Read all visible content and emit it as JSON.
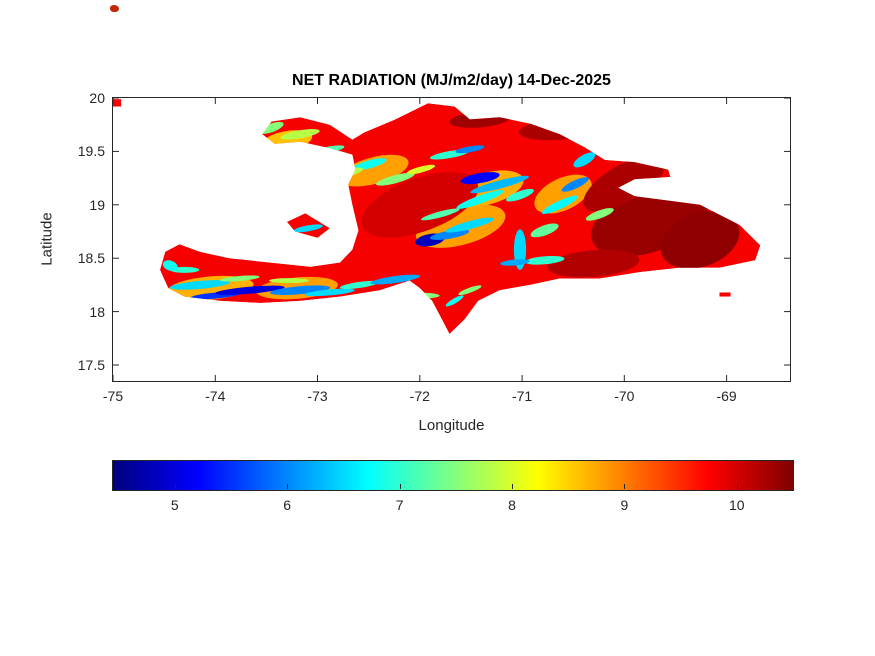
{
  "chart_data": {
    "type": "heatmap",
    "title": "NET RADIATION (MJ/m2/day) 14-Dec-2025",
    "xlabel": "Longitude",
    "ylabel": "Latitude",
    "units": "MJ/m2/day",
    "date": "14-Dec-2025",
    "region_shape": "Hispaniola",
    "xlim": [
      -75,
      -68.38
    ],
    "ylim": [
      17.35,
      20.0
    ],
    "x_ticks": [
      -75,
      -74,
      -73,
      -72,
      -71,
      -70,
      -69
    ],
    "y_ticks": [
      20,
      19.5,
      19,
      18.5,
      18,
      17.5
    ],
    "grid": false,
    "colorbar": {
      "orientation": "horizontal",
      "colormap": "jet",
      "min": 4.45,
      "max": 10.5,
      "ticks": [
        5,
        6,
        7,
        8,
        9,
        10
      ]
    },
    "base_value": 9.8,
    "outlines": [
      [
        [
          -73.54,
          19.66
        ],
        [
          -73.45,
          19.78
        ],
        [
          -73.17,
          19.82
        ],
        [
          -72.88,
          19.75
        ],
        [
          -72.66,
          19.61
        ],
        [
          -72.54,
          19.68
        ],
        [
          -72.24,
          19.8
        ],
        [
          -71.92,
          19.95
        ],
        [
          -71.66,
          19.92
        ],
        [
          -71.51,
          19.8
        ],
        [
          -71.22,
          19.82
        ],
        [
          -70.92,
          19.76
        ],
        [
          -70.63,
          19.66
        ],
        [
          -70.39,
          19.54
        ],
        [
          -70.19,
          19.42
        ],
        [
          -69.9,
          19.4
        ],
        [
          -69.57,
          19.33
        ],
        [
          -69.55,
          19.26
        ],
        [
          -69.9,
          19.24
        ],
        [
          -70.06,
          19.16
        ],
        [
          -69.9,
          19.08
        ],
        [
          -69.26,
          19.0
        ],
        [
          -68.87,
          18.81
        ],
        [
          -68.67,
          18.62
        ],
        [
          -68.72,
          18.48
        ],
        [
          -69.07,
          18.41
        ],
        [
          -69.46,
          18.41
        ],
        [
          -69.85,
          18.37
        ],
        [
          -70.24,
          18.31
        ],
        [
          -70.63,
          18.31
        ],
        [
          -70.92,
          18.25
        ],
        [
          -71.22,
          18.2
        ],
        [
          -71.43,
          18.1
        ],
        [
          -71.56,
          17.93
        ],
        [
          -71.71,
          17.79
        ],
        [
          -71.78,
          17.92
        ],
        [
          -71.88,
          18.1
        ],
        [
          -72.0,
          18.22
        ],
        [
          -72.1,
          18.29
        ],
        [
          -72.39,
          18.2
        ],
        [
          -72.78,
          18.14
        ],
        [
          -73.17,
          18.1
        ],
        [
          -73.56,
          18.08
        ],
        [
          -73.95,
          18.1
        ],
        [
          -74.3,
          18.14
        ],
        [
          -74.46,
          18.22
        ],
        [
          -74.54,
          18.39
        ],
        [
          -74.49,
          18.56
        ],
        [
          -74.35,
          18.63
        ],
        [
          -74.15,
          18.56
        ],
        [
          -73.86,
          18.5
        ],
        [
          -73.47,
          18.46
        ],
        [
          -73.07,
          18.42
        ],
        [
          -72.78,
          18.46
        ],
        [
          -72.66,
          18.58
        ],
        [
          -72.6,
          18.76
        ],
        [
          -72.66,
          19.0
        ],
        [
          -72.7,
          19.19
        ],
        [
          -72.63,
          19.33
        ],
        [
          -72.66,
          19.47
        ],
        [
          -72.88,
          19.53
        ],
        [
          -73.17,
          19.59
        ],
        [
          -73.42,
          19.57
        ]
      ],
      [
        [
          -73.3,
          18.84
        ],
        [
          -73.12,
          18.92
        ],
        [
          -72.88,
          18.78
        ],
        [
          -73.0,
          18.69
        ],
        [
          -73.22,
          18.75
        ]
      ],
      [
        [
          -75.0,
          19.99
        ],
        [
          -74.92,
          19.99
        ],
        [
          -74.92,
          19.92
        ],
        [
          -75.0,
          19.92
        ]
      ],
      [
        [
          -69.07,
          18.18
        ],
        [
          -68.96,
          18.18
        ],
        [
          -68.96,
          18.14
        ],
        [
          -69.07,
          18.14
        ]
      ]
    ],
    "patches": [
      [
        -71.6,
        18.8,
        0.9,
        0.35,
        -15,
        8.8
      ],
      [
        -74.05,
        18.22,
        0.85,
        0.22,
        -5,
        8.7
      ],
      [
        -73.2,
        18.22,
        0.8,
        0.2,
        -5,
        8.8
      ],
      [
        -71.35,
        19.15,
        0.75,
        0.3,
        -15,
        8.7
      ],
      [
        -70.6,
        19.1,
        0.6,
        0.3,
        -25,
        8.8
      ],
      [
        -72.45,
        19.32,
        0.7,
        0.25,
        -15,
        8.8
      ],
      [
        -73.3,
        19.6,
        0.5,
        0.18,
        -10,
        8.6
      ],
      [
        -69.75,
        18.86,
        1.2,
        0.6,
        -20,
        10.35
      ],
      [
        -69.26,
        18.67,
        0.8,
        0.5,
        -20,
        10.4
      ],
      [
        -70.63,
        19.71,
        0.8,
        0.2,
        -5,
        10.25
      ],
      [
        -71.41,
        19.8,
        0.6,
        0.15,
        -5,
        10.3
      ],
      [
        -70.0,
        19.2,
        0.9,
        0.35,
        -30,
        10.25
      ],
      [
        -72.0,
        19.0,
        1.2,
        0.5,
        -20,
        10.0
      ],
      [
        -70.3,
        18.45,
        0.9,
        0.25,
        -5,
        10.2
      ]
    ],
    "streaks": [
      [
        -74.15,
        18.25,
        0.59,
        0.075,
        -5,
        6.5
      ],
      [
        -74.0,
        18.15,
        0.49,
        0.057,
        -5,
        5.5
      ],
      [
        -74.3,
        18.39,
        0.29,
        0.057,
        0,
        7.0
      ],
      [
        -73.66,
        18.2,
        0.68,
        0.066,
        -5,
        5.0
      ],
      [
        -73.76,
        18.31,
        0.39,
        0.047,
        -5,
        7.5
      ],
      [
        -73.17,
        18.2,
        0.59,
        0.075,
        -5,
        6.0
      ],
      [
        -73.28,
        18.29,
        0.39,
        0.047,
        0,
        7.8
      ],
      [
        -72.88,
        18.18,
        0.49,
        0.057,
        -5,
        6.5
      ],
      [
        -72.59,
        18.25,
        0.39,
        0.057,
        -8,
        7.0
      ],
      [
        -72.24,
        18.3,
        0.49,
        0.066,
        -8,
        6.2
      ],
      [
        -72.0,
        18.15,
        0.39,
        0.057,
        0,
        7.5
      ],
      [
        -74.44,
        18.43,
        0.15,
        0.094,
        20,
        6.8
      ],
      [
        -71.9,
        18.67,
        0.29,
        0.113,
        -10,
        4.8
      ],
      [
        -71.71,
        18.72,
        0.39,
        0.075,
        -10,
        6.0
      ],
      [
        -71.51,
        18.81,
        0.49,
        0.075,
        -15,
        6.5
      ],
      [
        -71.8,
        18.91,
        0.39,
        0.057,
        -15,
        7.2
      ],
      [
        -71.41,
        19.05,
        0.49,
        0.075,
        -20,
        6.8
      ],
      [
        -71.22,
        19.19,
        0.59,
        0.075,
        -15,
        6.3
      ],
      [
        -71.41,
        19.25,
        0.39,
        0.094,
        -10,
        5.2
      ],
      [
        -71.02,
        19.09,
        0.29,
        0.075,
        -20,
        7.0
      ],
      [
        -71.02,
        18.58,
        0.12,
        0.38,
        0,
        6.5
      ],
      [
        -70.78,
        18.76,
        0.29,
        0.094,
        -20,
        7.3
      ],
      [
        -70.63,
        19.0,
        0.39,
        0.075,
        -25,
        6.7
      ],
      [
        -70.48,
        19.19,
        0.29,
        0.075,
        -25,
        6.0
      ],
      [
        -70.39,
        19.42,
        0.24,
        0.094,
        -30,
        6.5
      ],
      [
        -70.24,
        18.91,
        0.29,
        0.075,
        -20,
        7.5
      ],
      [
        -70.78,
        18.48,
        0.39,
        0.075,
        -5,
        7.0
      ],
      [
        -71.07,
        18.46,
        0.29,
        0.057,
        -5,
        6.2
      ],
      [
        -73.17,
        19.66,
        0.39,
        0.075,
        -10,
        7.8
      ],
      [
        -72.88,
        19.52,
        0.29,
        0.057,
        -10,
        7.2
      ],
      [
        -72.49,
        19.38,
        0.34,
        0.075,
        -15,
        6.8
      ],
      [
        -72.24,
        19.24,
        0.39,
        0.075,
        -15,
        7.5
      ],
      [
        -71.99,
        19.33,
        0.29,
        0.057,
        -15,
        8.0
      ],
      [
        -71.71,
        19.47,
        0.39,
        0.066,
        -10,
        7.0
      ],
      [
        -71.51,
        19.52,
        0.29,
        0.057,
        -10,
        6.0
      ],
      [
        -73.09,
        18.78,
        0.29,
        0.057,
        -10,
        6.5
      ],
      [
        -71.66,
        18.1,
        0.2,
        0.047,
        -30,
        6.8
      ],
      [
        -71.51,
        18.2,
        0.24,
        0.047,
        -20,
        7.5
      ],
      [
        -73.45,
        19.72,
        0.25,
        0.08,
        -20,
        7.5
      ],
      [
        -72.7,
        19.3,
        0.3,
        0.07,
        -15,
        7.8
      ]
    ]
  },
  "colors": {
    "background": "#ffffff",
    "axis": "#262626",
    "title": "#000000",
    "stray_dot": "#c32807"
  }
}
